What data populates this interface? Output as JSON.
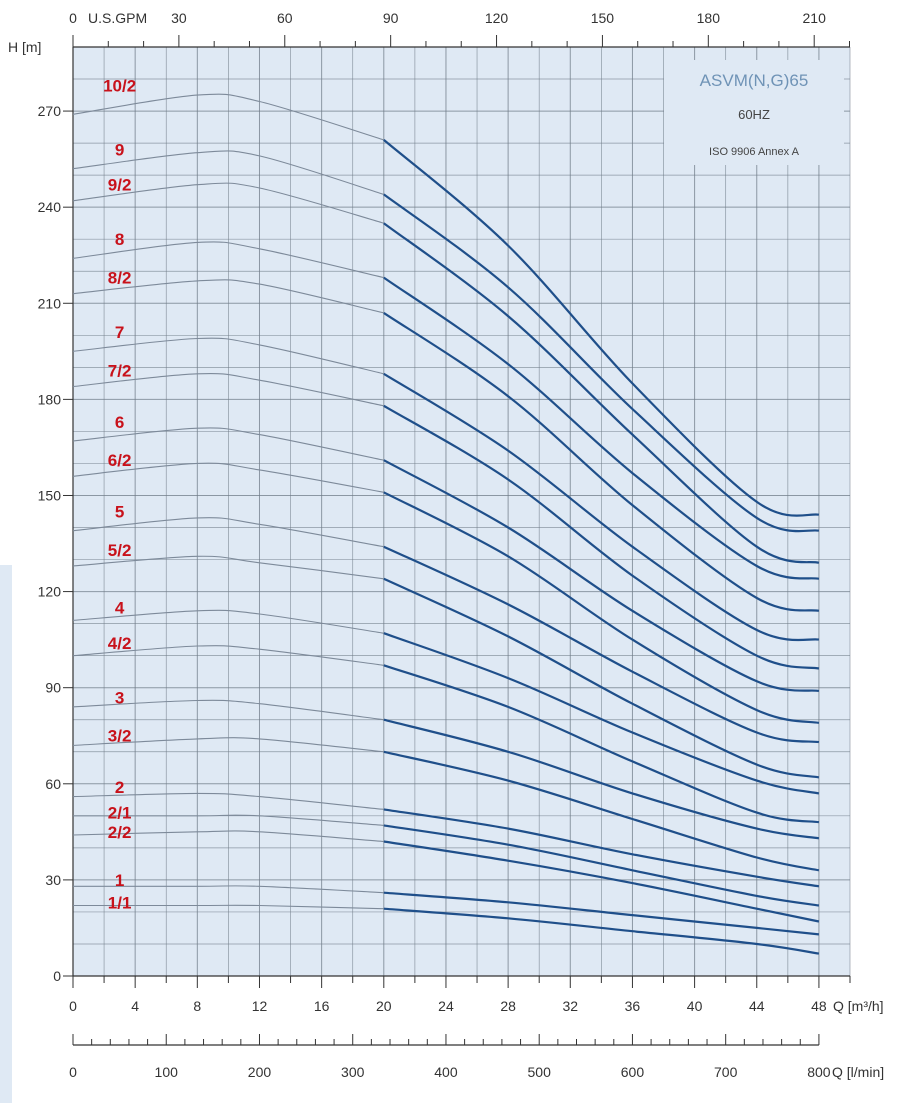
{
  "chart_data": {
    "type": "line",
    "title": "ASVM(N,G)65",
    "subtitle": "60HZ",
    "note": "ISO 9906 Annex A",
    "ylabel": "H [m]",
    "xlabel": "Q [m³/h]",
    "x2label": "Q [l/min]",
    "top_axis_label": "U.S.GPM",
    "xlim": [
      0,
      50
    ],
    "ylim": [
      0,
      290
    ],
    "x_ticks": [
      0,
      4,
      8,
      12,
      16,
      20,
      24,
      28,
      32,
      36,
      40,
      44,
      48
    ],
    "y_ticks": [
      0,
      30,
      60,
      90,
      120,
      150,
      180,
      210,
      240,
      270
    ],
    "gpm_ticks": [
      0,
      30,
      60,
      90,
      120,
      150,
      180,
      210
    ],
    "lpm_ticks": [
      0,
      100,
      200,
      300,
      400,
      500,
      600,
      700,
      800
    ],
    "grid": true,
    "operating_range_start": 20,
    "colors": {
      "line_dim": "#7d8a9a",
      "line_bold": "#1f4f8a",
      "label": "#c8121b",
      "grid": "#707c88",
      "bg": "#dfe9f4"
    },
    "series": [
      {
        "name": "10/2",
        "label_y": 278,
        "points": [
          [
            0,
            269
          ],
          [
            8,
            275
          ],
          [
            12,
            273
          ],
          [
            20,
            261
          ],
          [
            28,
            228
          ],
          [
            36,
            185
          ],
          [
            44,
            148
          ],
          [
            48,
            144
          ]
        ]
      },
      {
        "name": "9",
        "label_y": 258,
        "points": [
          [
            0,
            252
          ],
          [
            8,
            257
          ],
          [
            12,
            256
          ],
          [
            20,
            244
          ],
          [
            28,
            215
          ],
          [
            36,
            177
          ],
          [
            44,
            143
          ],
          [
            48,
            139
          ]
        ]
      },
      {
        "name": "9/2",
        "label_y": 247,
        "points": [
          [
            0,
            242
          ],
          [
            8,
            247
          ],
          [
            12,
            246
          ],
          [
            20,
            235
          ],
          [
            28,
            206
          ],
          [
            36,
            169
          ],
          [
            44,
            134
          ],
          [
            48,
            129
          ]
        ]
      },
      {
        "name": "8",
        "label_y": 230,
        "points": [
          [
            0,
            224
          ],
          [
            8,
            229
          ],
          [
            12,
            227
          ],
          [
            20,
            218
          ],
          [
            28,
            191
          ],
          [
            36,
            157
          ],
          [
            44,
            128
          ],
          [
            48,
            124
          ]
        ]
      },
      {
        "name": "8/2",
        "label_y": 218,
        "points": [
          [
            0,
            213
          ],
          [
            8,
            217
          ],
          [
            12,
            216
          ],
          [
            20,
            207
          ],
          [
            28,
            181
          ],
          [
            36,
            147
          ],
          [
            44,
            118
          ],
          [
            48,
            114
          ]
        ]
      },
      {
        "name": "7",
        "label_y": 201,
        "points": [
          [
            0,
            195
          ],
          [
            8,
            199
          ],
          [
            12,
            197
          ],
          [
            20,
            188
          ],
          [
            28,
            164
          ],
          [
            36,
            134
          ],
          [
            44,
            108
          ],
          [
            48,
            105
          ]
        ]
      },
      {
        "name": "7/2",
        "label_y": 189,
        "points": [
          [
            0,
            184
          ],
          [
            8,
            188
          ],
          [
            12,
            186
          ],
          [
            20,
            178
          ],
          [
            28,
            155
          ],
          [
            36,
            125
          ],
          [
            44,
            100
          ],
          [
            48,
            96
          ]
        ]
      },
      {
        "name": "6",
        "label_y": 173,
        "points": [
          [
            0,
            167
          ],
          [
            8,
            171
          ],
          [
            12,
            169
          ],
          [
            20,
            161
          ],
          [
            28,
            140
          ],
          [
            36,
            114
          ],
          [
            44,
            92
          ],
          [
            48,
            89
          ]
        ]
      },
      {
        "name": "6/2",
        "label_y": 161,
        "points": [
          [
            0,
            156
          ],
          [
            8,
            160
          ],
          [
            12,
            158
          ],
          [
            20,
            151
          ],
          [
            28,
            131
          ],
          [
            36,
            105
          ],
          [
            44,
            83
          ],
          [
            48,
            79
          ]
        ]
      },
      {
        "name": "5",
        "label_y": 145,
        "points": [
          [
            0,
            139
          ],
          [
            8,
            143
          ],
          [
            12,
            141
          ],
          [
            20,
            134
          ],
          [
            28,
            116
          ],
          [
            36,
            95
          ],
          [
            44,
            76
          ],
          [
            48,
            73
          ]
        ]
      },
      {
        "name": "5/2",
        "label_y": 133,
        "points": [
          [
            0,
            128
          ],
          [
            8,
            131
          ],
          [
            12,
            129
          ],
          [
            20,
            124
          ],
          [
            28,
            106
          ],
          [
            36,
            85
          ],
          [
            44,
            66
          ],
          [
            48,
            62
          ]
        ]
      },
      {
        "name": "4",
        "label_y": 115,
        "points": [
          [
            0,
            111
          ],
          [
            8,
            114
          ],
          [
            12,
            113
          ],
          [
            20,
            107
          ],
          [
            28,
            93
          ],
          [
            36,
            76
          ],
          [
            44,
            61
          ],
          [
            48,
            57
          ]
        ]
      },
      {
        "name": "4/2",
        "label_y": 104,
        "points": [
          [
            0,
            100
          ],
          [
            8,
            103
          ],
          [
            12,
            102
          ],
          [
            20,
            97
          ],
          [
            28,
            84
          ],
          [
            36,
            67
          ],
          [
            44,
            51
          ],
          [
            48,
            48
          ]
        ]
      },
      {
        "name": "3",
        "label_y": 87,
        "points": [
          [
            0,
            84
          ],
          [
            8,
            86
          ],
          [
            12,
            85
          ],
          [
            20,
            80
          ],
          [
            28,
            70
          ],
          [
            36,
            57
          ],
          [
            44,
            46
          ],
          [
            48,
            43
          ]
        ]
      },
      {
        "name": "3/2",
        "label_y": 75,
        "points": [
          [
            0,
            72
          ],
          [
            8,
            74
          ],
          [
            12,
            74
          ],
          [
            20,
            70
          ],
          [
            28,
            61
          ],
          [
            36,
            49
          ],
          [
            44,
            37
          ],
          [
            48,
            33
          ]
        ]
      },
      {
        "name": "2",
        "label_y": 59,
        "points": [
          [
            0,
            56
          ],
          [
            8,
            57
          ],
          [
            12,
            56
          ],
          [
            20,
            52
          ],
          [
            28,
            46
          ],
          [
            36,
            38
          ],
          [
            44,
            31
          ],
          [
            48,
            28
          ]
        ]
      },
      {
        "name": "2/1",
        "label_y": 51,
        "points": [
          [
            0,
            50
          ],
          [
            8,
            50
          ],
          [
            12,
            50
          ],
          [
            20,
            47
          ],
          [
            28,
            41
          ],
          [
            36,
            33
          ],
          [
            44,
            25
          ],
          [
            48,
            22
          ]
        ]
      },
      {
        "name": "2/2",
        "label_y": 45,
        "points": [
          [
            0,
            44
          ],
          [
            8,
            45
          ],
          [
            12,
            45
          ],
          [
            20,
            42
          ],
          [
            28,
            36
          ],
          [
            36,
            29
          ],
          [
            44,
            21
          ],
          [
            48,
            17
          ]
        ]
      },
      {
        "name": "1",
        "label_y": 30,
        "points": [
          [
            0,
            28
          ],
          [
            8,
            28
          ],
          [
            12,
            28
          ],
          [
            20,
            26
          ],
          [
            28,
            23
          ],
          [
            36,
            19
          ],
          [
            44,
            15
          ],
          [
            48,
            13
          ]
        ]
      },
      {
        "name": "1/1",
        "label_y": 23,
        "points": [
          [
            0,
            22
          ],
          [
            8,
            22
          ],
          [
            12,
            22
          ],
          [
            20,
            21
          ],
          [
            28,
            18
          ],
          [
            36,
            14
          ],
          [
            44,
            10
          ],
          [
            48,
            7
          ]
        ]
      }
    ]
  }
}
